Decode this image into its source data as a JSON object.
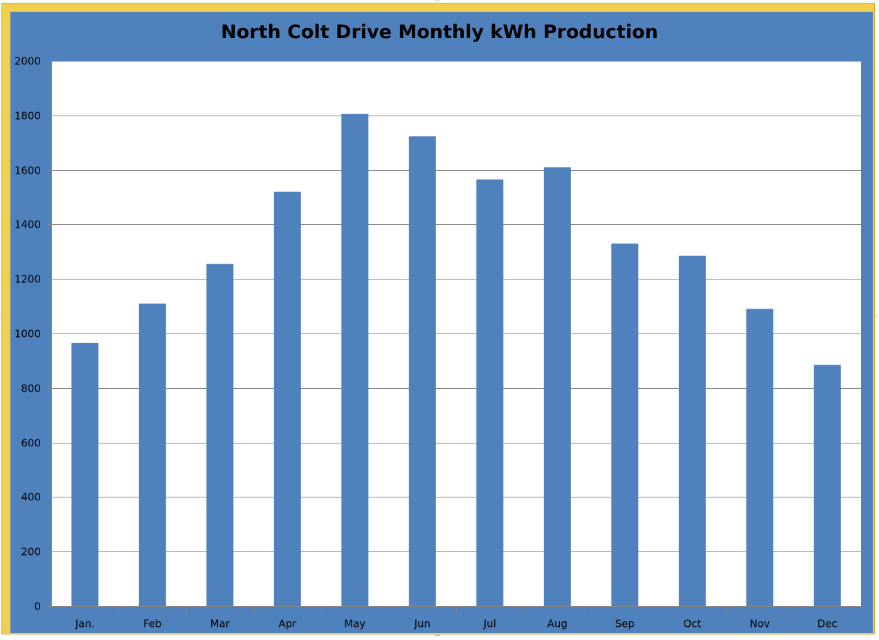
{
  "chart_data": {
    "type": "bar",
    "title": "North Colt Drive Monthly kWh Production",
    "xlabel": "",
    "ylabel": "",
    "categories": [
      "Jan.",
      "Feb",
      "Mar",
      "Apr",
      "May",
      "Jun",
      "Jul",
      "Aug",
      "Sep",
      "Oct",
      "Nov",
      "Dec"
    ],
    "series": [
      {
        "values": [
          965,
          1110,
          1255,
          1520,
          1805,
          1723,
          1565,
          1610,
          1330,
          1285,
          1090,
          885
        ]
      }
    ],
    "ylim": [
      0,
      2000
    ],
    "yticks": [
      0,
      200,
      400,
      600,
      800,
      1000,
      1200,
      1400,
      1600,
      1800,
      2000
    ],
    "grid": true,
    "legend": "none",
    "colors": {
      "bar": "#4f81bd",
      "frame": "#f2ce4e",
      "background": "#4f81bd",
      "plot_area": "#ffffff",
      "gridline": "#868686",
      "text": "#000000"
    }
  }
}
